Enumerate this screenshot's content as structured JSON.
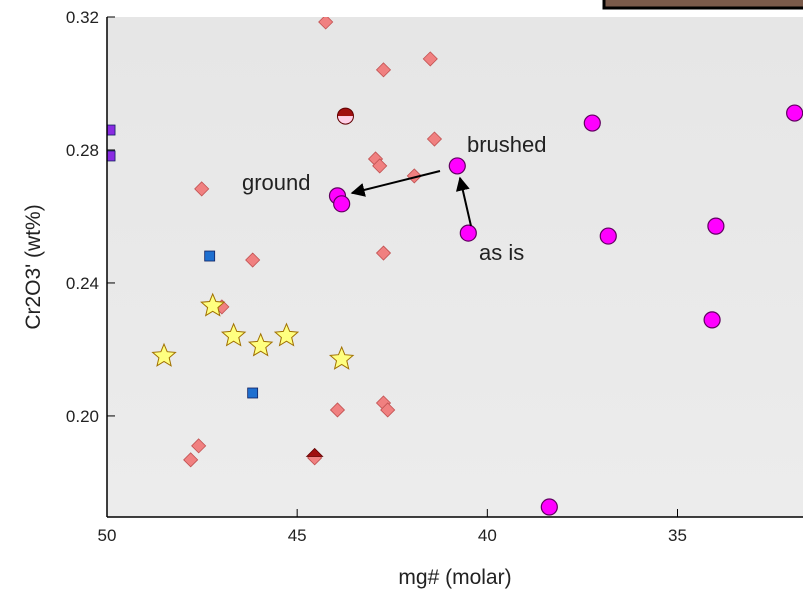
{
  "chart_data": {
    "type": "scatter",
    "xlabel": "mg# (molar)",
    "ylabel": "Cr2O3' (wt%)",
    "xlim": [
      50,
      31.7
    ],
    "ylim": [
      0.1696,
      0.32
    ],
    "xticks": [
      50,
      45,
      40,
      35
    ],
    "yticks": [
      {
        "value": 0.2,
        "label": "0.20"
      },
      0.24,
      0.28,
      0.32
    ],
    "annotations": [
      "brushed",
      "ground",
      "as is"
    ],
    "series": [
      {
        "marker": "diamond",
        "color": "#f08080",
        "x": [
          44.25,
          41.5,
          42.73,
          41.39,
          42.94,
          42.83,
          41.92,
          47.51,
          42.73,
          46.17,
          46.98,
          43.94,
          42.73,
          42.62,
          47.59,
          47.8,
          44.54
        ],
        "values": [
          0.3185,
          0.3074,
          0.3041,
          0.2833,
          0.2773,
          0.2752,
          0.2722,
          0.2683,
          0.249,
          0.2469,
          0.2328,
          0.2018,
          0.2039,
          0.2018,
          0.191,
          0.1868,
          0.1874
        ]
      },
      {
        "marker": "circle",
        "color": "#ff00ff",
        "x": [
          40.79,
          37.24,
          31.92,
          43.94,
          43.83,
          40.5,
          36.82,
          33.99,
          34.09,
          38.37
        ],
        "values": [
          0.2752,
          0.2881,
          0.2911,
          0.2662,
          0.2638,
          0.255,
          0.2541,
          0.2571,
          0.2289,
          0.1726
        ]
      },
      {
        "marker": "star",
        "color": "#ffff80",
        "x": [
          48.5,
          47.22,
          46.67,
          45.96,
          45.28,
          43.83
        ],
        "values": [
          0.218,
          0.2331,
          0.2241,
          0.2211,
          0.2241,
          0.2171
        ]
      },
      {
        "marker": "square",
        "color": "#1e6fd0",
        "x": [
          47.3,
          46.17
        ],
        "values": [
          0.2481,
          0.2069
        ]
      },
      {
        "marker": "square",
        "color": "#8a2be2",
        "x": [
          49.92,
          49.92
        ],
        "values": [
          0.286,
          0.2782
        ]
      },
      {
        "marker": "half-circle",
        "color": "#a01010",
        "x": [
          43.73
        ],
        "values": [
          0.2902
        ]
      },
      {
        "marker": "half-diamond",
        "color": "#a01010",
        "x": [
          44.54
        ],
        "values": [
          0.1878
        ]
      }
    ]
  }
}
